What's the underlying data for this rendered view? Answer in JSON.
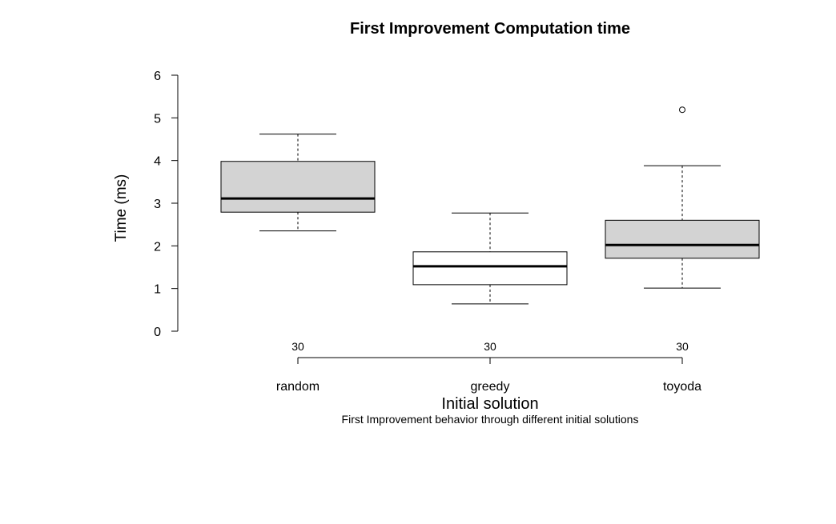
{
  "chart_data": {
    "type": "box",
    "title": "First Improvement Computation time",
    "xlabel": "Initial solution",
    "ylabel": "Time (ms)",
    "caption": "First Improvement behavior through different initial solutions",
    "ylim": [
      0,
      6
    ],
    "yticks": [
      "0",
      "1",
      "2",
      "3",
      "4",
      "5",
      "6"
    ],
    "grid": false,
    "categories": [
      "random",
      "greedy",
      "toyoda"
    ],
    "counts": [
      "30",
      "30",
      "30"
    ],
    "boxes": [
      {
        "category": "random",
        "whisker_low": 2.35,
        "q1": 2.79,
        "median": 3.11,
        "q3": 3.98,
        "whisker_high": 4.62,
        "outliers": [],
        "fill": "#d3d3d3"
      },
      {
        "category": "greedy",
        "whisker_low": 0.64,
        "q1": 1.09,
        "median": 1.52,
        "q3": 1.86,
        "whisker_high": 2.77,
        "outliers": [],
        "fill": "#ffffff"
      },
      {
        "category": "toyoda",
        "whisker_low": 1.01,
        "q1": 1.71,
        "median": 2.02,
        "q3": 2.6,
        "whisker_high": 3.88,
        "outliers": [
          5.19
        ],
        "fill": "#d3d3d3"
      }
    ]
  }
}
